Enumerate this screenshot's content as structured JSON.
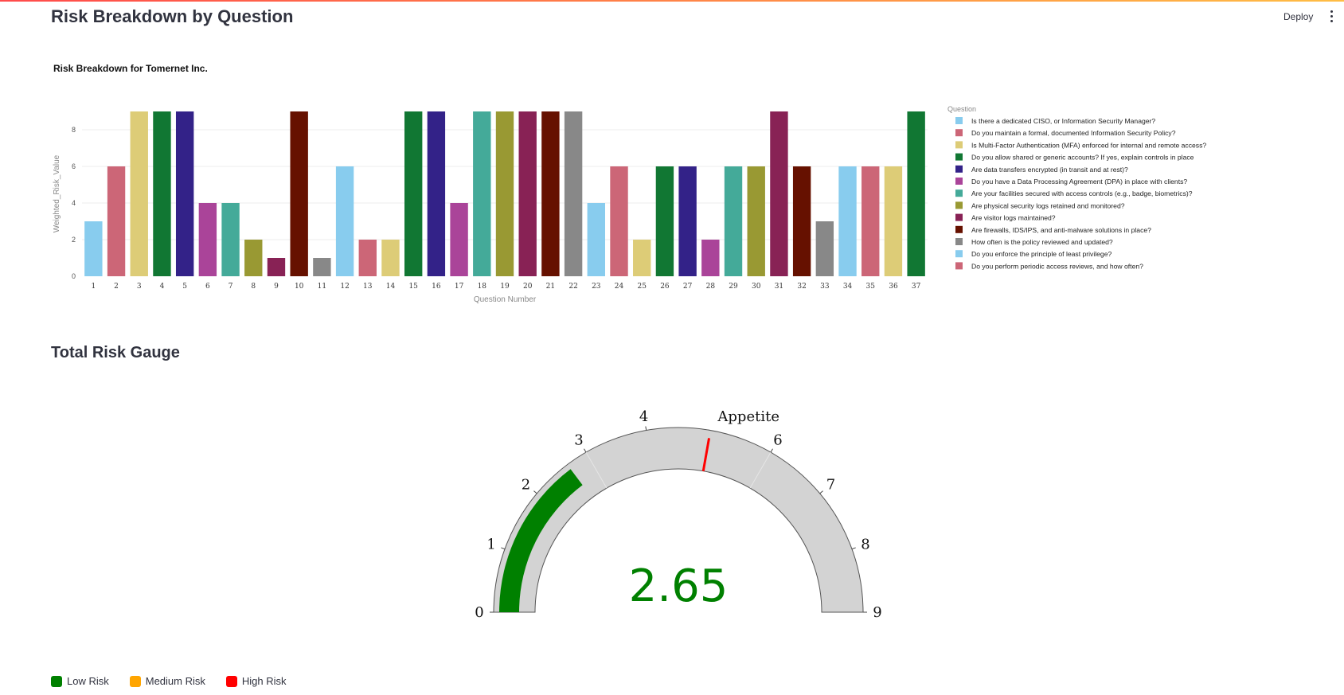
{
  "app": {
    "deploy_label": "Deploy"
  },
  "headings": {
    "page_title": "Risk Breakdown by Question",
    "gauge_section": "Total Risk Gauge"
  },
  "colors": {
    "palette": [
      "#88CCEE",
      "#CC6677",
      "#DDCC77",
      "#117733",
      "#332288",
      "#AA4499",
      "#44AA99",
      "#999933",
      "#882255",
      "#661100",
      "#888888"
    ],
    "gauge_fill": "#008000",
    "gauge_track": "#d3d3d3",
    "threshold": "#ff0000",
    "low": "#008000",
    "medium": "#ffa500",
    "high": "#ff0000"
  },
  "chart_data": [
    {
      "type": "bar",
      "title": "Risk Breakdown for Tomernet Inc.",
      "xlabel": "Question Number",
      "ylabel": "Weighted_Risk_Value",
      "categories": [
        "1",
        "2",
        "3",
        "4",
        "5",
        "6",
        "7",
        "8",
        "9",
        "10",
        "11",
        "12",
        "13",
        "14",
        "15",
        "16",
        "17",
        "18",
        "19",
        "20",
        "21",
        "22",
        "23",
        "24",
        "25",
        "26",
        "27",
        "28",
        "29",
        "30",
        "31",
        "32",
        "33",
        "34",
        "35",
        "36",
        "37"
      ],
      "values": [
        3,
        6,
        9,
        9,
        9,
        4,
        4,
        2,
        1,
        9,
        1,
        6,
        2,
        2,
        9,
        9,
        4,
        9,
        9,
        9,
        9,
        9,
        4,
        6,
        2,
        6,
        6,
        2,
        6,
        6,
        9,
        6,
        3,
        6,
        6,
        6,
        9
      ],
      "ylim": [
        0,
        9
      ],
      "yticks": [
        0,
        2,
        4,
        6,
        8
      ],
      "grid": true,
      "legend_title": "Question",
      "legend_position": "right",
      "legend": [
        "Is there a dedicated CISO, or Information Security Manager?",
        "Do you maintain a formal, documented Information Security Policy?",
        "Is Multi-Factor Authentication (MFA) enforced for internal and remote access?",
        "Do you allow shared or generic accounts? If yes, explain controls in place",
        "Are data transfers encrypted (in transit and at rest)?",
        "Do you have a Data Processing Agreement (DPA) in place with clients?",
        "Are your facilities secured with access controls (e.g., badge, biometrics)?",
        "Are physical security logs retained and monitored?",
        "Are visitor logs maintained?",
        "Are firewalls, IDS/IPS, and anti-malware solutions in place?",
        "How often is the policy reviewed and updated?",
        "Do you enforce the principle of least privilege?",
        "Do you perform periodic access reviews, and how often?"
      ]
    },
    {
      "type": "gauge",
      "value": 2.65,
      "value_text": "2.65",
      "range": [
        0,
        9
      ],
      "ticks": [
        0,
        1,
        2,
        3,
        4,
        6,
        7,
        8,
        9
      ],
      "step_boundaries": [
        3,
        6
      ],
      "threshold": 5,
      "threshold_label": "Appetite"
    }
  ],
  "legend_bottom": [
    {
      "label": "Low Risk",
      "color": "#008000"
    },
    {
      "label": "Medium Risk",
      "color": "#ffa500"
    },
    {
      "label": "High Risk",
      "color": "#ff0000"
    }
  ]
}
